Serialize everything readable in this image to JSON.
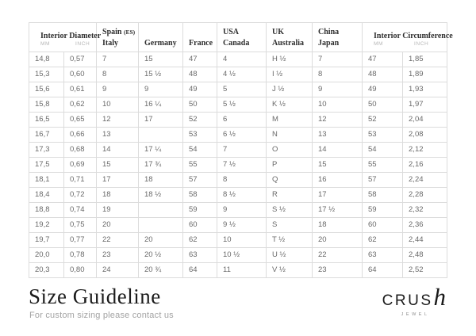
{
  "colors": {
    "background": "#ffffff",
    "table_border": "#dcdcdc",
    "header_text": "#2e2e2e",
    "cell_text": "#6a6a6a",
    "unit_label_text": "#b5b5b5",
    "title_text": "#1c1c1c",
    "subtitle_text": "#a3a3a3",
    "logo_text": "#1a1a1a"
  },
  "table": {
    "headers": {
      "diameter": {
        "title": "Interior Diameter",
        "mm": "MM",
        "inch": "INCH"
      },
      "spain": {
        "name": "Spain",
        "suffix": "(ES)",
        "l2": "Italy"
      },
      "germany": {
        "l1": "Germany"
      },
      "france": {
        "l1": "France"
      },
      "usa": {
        "l1": "USA",
        "l2": "Canada"
      },
      "uk": {
        "l1": "UK",
        "l2": "Australia"
      },
      "china": {
        "l1": "China",
        "l2": "Japan"
      },
      "circumference": {
        "title": "Interior Circumference",
        "mm": "MM",
        "inch": "INCH"
      }
    },
    "rows": [
      [
        "14,8",
        "0,57",
        "7",
        "15",
        "47",
        "4",
        "H ½",
        "7",
        "47",
        "1,85"
      ],
      [
        "15,3",
        "0,60",
        "8",
        "15 ½",
        "48",
        "4 ½",
        "I ½",
        "8",
        "48",
        "1,89"
      ],
      [
        "15,6",
        "0,61",
        "9",
        "9",
        "49",
        "5",
        "J ½",
        "9",
        "49",
        "1,93"
      ],
      [
        "15,8",
        "0,62",
        "10",
        "16 ¼",
        "50",
        "5 ½",
        "K ½",
        "10",
        "50",
        "1,97"
      ],
      [
        "16,5",
        "0,65",
        "12",
        "17",
        "52",
        "6",
        "M",
        "12",
        "52",
        "2,04"
      ],
      [
        "16,7",
        "0,66",
        "13",
        "",
        "53",
        "6 ½",
        "N",
        "13",
        "53",
        "2,08"
      ],
      [
        "17,3",
        "0,68",
        "14",
        "17 ¼",
        "54",
        "7",
        "O",
        "14",
        "54",
        "2,12"
      ],
      [
        "17,5",
        "0,69",
        "15",
        "17 ¾",
        "55",
        "7 ½",
        "P",
        "15",
        "55",
        "2,16"
      ],
      [
        "18,1",
        "0,71",
        "17",
        "18",
        "57",
        "8",
        "Q",
        "16",
        "57",
        "2,24"
      ],
      [
        "18,4",
        "0,72",
        "18",
        "18 ½",
        "58",
        "8 ½",
        "R",
        "17",
        "58",
        "2,28"
      ],
      [
        "18,8",
        "0,74",
        "19",
        "",
        "59",
        "9",
        "S ½",
        "17 ½",
        "59",
        "2,32"
      ],
      [
        "19,2",
        "0,75",
        "20",
        "",
        "60",
        "9 ½",
        "S",
        "18",
        "60",
        "2,36"
      ],
      [
        "19,7",
        "0,77",
        "22",
        "20",
        "62",
        "10",
        "T ½",
        "20",
        "62",
        "2,44"
      ],
      [
        "20,0",
        "0,78",
        "23",
        "20 ½",
        "63",
        "10 ½",
        "U ½",
        "22",
        "63",
        "2,48"
      ],
      [
        "20,3",
        "0,80",
        "24",
        "20 ¾",
        "64",
        "11",
        "V ½",
        "23",
        "64",
        "2,52"
      ]
    ]
  },
  "footer": {
    "title": "Size Guideline",
    "subtitle": "For custom sizing please contact us"
  },
  "logo": {
    "brand_main": "CRUS",
    "brand_accent": "h",
    "tagline": "JEWEL"
  }
}
